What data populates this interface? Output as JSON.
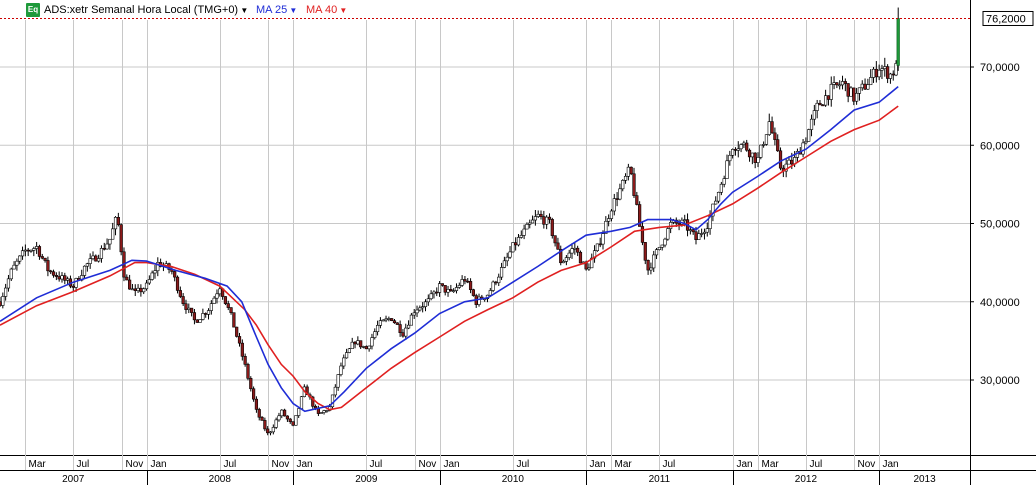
{
  "header": {
    "badge": "Eq",
    "instrument": "ADS:xetr Semanal Hora Local (TMG+0)",
    "ma_short_label": "MA 25",
    "ma_long_label": "MA 40"
  },
  "colors": {
    "candle_up": "#ffffff",
    "candle_down": "#8b1a1a",
    "ma_short": "#1f2dd6",
    "ma_long": "#e02020",
    "last_price_line": "#cc0000",
    "grid": "#c8c8c8",
    "breakout_candle": "#1e9a3a"
  },
  "chart_data": {
    "type": "candlestick",
    "title": "ADS:xetr Semanal Hora Local (TMG+0)",
    "y_axis": {
      "min": 20,
      "max": 80,
      "ticks": [
        "30,0000",
        "40,0000",
        "50,0000",
        "60,0000",
        "70,0000"
      ],
      "tick_values": [
        30,
        40,
        50,
        60,
        70
      ],
      "position": "right"
    },
    "last_price": {
      "value": 76.2,
      "label": "76,2000"
    },
    "x_axis": {
      "months": [
        {
          "label": "Mar",
          "t": 2007.17
        },
        {
          "label": "Jul",
          "t": 2007.5
        },
        {
          "label": "Nov",
          "t": 2007.83
        },
        {
          "label": "Jan",
          "t": 2008.0
        },
        {
          "label": "Jul",
          "t": 2008.5
        },
        {
          "label": "Nov",
          "t": 2008.83
        },
        {
          "label": "Jan",
          "t": 2009.0
        },
        {
          "label": "Jul",
          "t": 2009.5
        },
        {
          "label": "Nov",
          "t": 2009.83
        },
        {
          "label": "Jan",
          "t": 2010.0
        },
        {
          "label": "Jul",
          "t": 2010.5
        },
        {
          "label": "Jan",
          "t": 2011.0
        },
        {
          "label": "Mar",
          "t": 2011.17
        },
        {
          "label": "Jul",
          "t": 2011.5
        },
        {
          "label": "Jan",
          "t": 2012.0
        },
        {
          "label": "Mar",
          "t": 2012.17
        },
        {
          "label": "Jul",
          "t": 2012.5
        },
        {
          "label": "Nov",
          "t": 2012.83
        },
        {
          "label": "Jan",
          "t": 2013.0
        }
      ],
      "years": [
        {
          "label": "2007",
          "t": 2007.0
        },
        {
          "label": "2008",
          "t": 2008.0
        },
        {
          "label": "2009",
          "t": 2009.0
        },
        {
          "label": "2010",
          "t": 2010.0
        },
        {
          "label": "2011",
          "t": 2011.0
        },
        {
          "label": "2012",
          "t": 2012.0
        },
        {
          "label": "2013",
          "t": 2013.0
        }
      ],
      "range": [
        2007.0,
        2013.62
      ]
    },
    "price_path": [
      [
        2007.0,
        40
      ],
      [
        2007.08,
        44
      ],
      [
        2007.17,
        46.5
      ],
      [
        2007.25,
        47
      ],
      [
        2007.33,
        44
      ],
      [
        2007.42,
        43
      ],
      [
        2007.5,
        42
      ],
      [
        2007.58,
        44.5
      ],
      [
        2007.67,
        46
      ],
      [
        2007.75,
        48
      ],
      [
        2007.8,
        51
      ],
      [
        2007.85,
        43
      ],
      [
        2007.92,
        41
      ],
      [
        2008.0,
        42
      ],
      [
        2008.08,
        45
      ],
      [
        2008.17,
        44
      ],
      [
        2008.25,
        40
      ],
      [
        2008.33,
        37.5
      ],
      [
        2008.42,
        39
      ],
      [
        2008.5,
        42
      ],
      [
        2008.58,
        38
      ],
      [
        2008.67,
        32
      ],
      [
        2008.75,
        26
      ],
      [
        2008.83,
        23
      ],
      [
        2008.92,
        26
      ],
      [
        2009.0,
        24
      ],
      [
        2009.08,
        29
      ],
      [
        2009.17,
        25.5
      ],
      [
        2009.25,
        26.5
      ],
      [
        2009.33,
        32
      ],
      [
        2009.42,
        35
      ],
      [
        2009.5,
        34
      ],
      [
        2009.58,
        37
      ],
      [
        2009.67,
        38
      ],
      [
        2009.75,
        36
      ],
      [
        2009.83,
        39
      ],
      [
        2009.92,
        40
      ],
      [
        2010.0,
        42
      ],
      [
        2010.08,
        41
      ],
      [
        2010.17,
        43
      ],
      [
        2010.25,
        40
      ],
      [
        2010.33,
        41
      ],
      [
        2010.42,
        44
      ],
      [
        2010.5,
        47
      ],
      [
        2010.58,
        49
      ],
      [
        2010.67,
        51
      ],
      [
        2010.75,
        50
      ],
      [
        2010.83,
        45
      ],
      [
        2010.92,
        47
      ],
      [
        2011.0,
        44
      ],
      [
        2011.08,
        47
      ],
      [
        2011.17,
        52
      ],
      [
        2011.25,
        55
      ],
      [
        2011.3,
        57
      ],
      [
        2011.38,
        48
      ],
      [
        2011.42,
        44
      ],
      [
        2011.5,
        47
      ],
      [
        2011.58,
        50
      ],
      [
        2011.67,
        50
      ],
      [
        2011.75,
        48
      ],
      [
        2011.83,
        50
      ],
      [
        2011.92,
        55
      ],
      [
        2012.0,
        60
      ],
      [
        2012.08,
        60
      ],
      [
        2012.17,
        58
      ],
      [
        2012.25,
        63
      ],
      [
        2012.33,
        57
      ],
      [
        2012.42,
        58
      ],
      [
        2012.5,
        61
      ],
      [
        2012.58,
        65
      ],
      [
        2012.67,
        67
      ],
      [
        2012.75,
        68
      ],
      [
        2012.83,
        66
      ],
      [
        2012.92,
        68
      ],
      [
        2013.0,
        70
      ],
      [
        2013.08,
        69
      ],
      [
        2013.12,
        70
      ],
      [
        2013.13,
        76
      ]
    ],
    "ma25_path": [
      [
        2007.0,
        37.5
      ],
      [
        2007.25,
        40.5
      ],
      [
        2007.5,
        42.5
      ],
      [
        2007.75,
        44
      ],
      [
        2007.9,
        45.3
      ],
      [
        2008.0,
        45.2
      ],
      [
        2008.2,
        44
      ],
      [
        2008.4,
        43
      ],
      [
        2008.55,
        42
      ],
      [
        2008.65,
        40
      ],
      [
        2008.75,
        35.5
      ],
      [
        2008.83,
        32
      ],
      [
        2008.92,
        29
      ],
      [
        2009.0,
        27
      ],
      [
        2009.08,
        26
      ],
      [
        2009.25,
        26.7
      ],
      [
        2009.35,
        28.5
      ],
      [
        2009.5,
        31.5
      ],
      [
        2009.67,
        34
      ],
      [
        2009.83,
        36
      ],
      [
        2010.0,
        38.5
      ],
      [
        2010.17,
        40
      ],
      [
        2010.33,
        40.5
      ],
      [
        2010.5,
        42.5
      ],
      [
        2010.67,
        44.5
      ],
      [
        2010.83,
        46.5
      ],
      [
        2011.0,
        48.5
      ],
      [
        2011.17,
        49
      ],
      [
        2011.3,
        49.5
      ],
      [
        2011.42,
        50.5
      ],
      [
        2011.58,
        50.5
      ],
      [
        2011.67,
        50
      ],
      [
        2011.75,
        49.2
      ],
      [
        2011.83,
        50.5
      ],
      [
        2011.92,
        52.5
      ],
      [
        2012.0,
        54
      ],
      [
        2012.17,
        56
      ],
      [
        2012.33,
        58
      ],
      [
        2012.5,
        59.5
      ],
      [
        2012.67,
        62
      ],
      [
        2012.83,
        64.5
      ],
      [
        2013.0,
        65.5
      ],
      [
        2013.13,
        67.5
      ]
    ],
    "ma40_path": [
      [
        2007.0,
        37
      ],
      [
        2007.25,
        39.5
      ],
      [
        2007.5,
        41.3
      ],
      [
        2007.75,
        43.3
      ],
      [
        2007.92,
        45
      ],
      [
        2008.0,
        45
      ],
      [
        2008.17,
        44.5
      ],
      [
        2008.33,
        43.5
      ],
      [
        2008.5,
        42
      ],
      [
        2008.67,
        39
      ],
      [
        2008.75,
        37
      ],
      [
        2008.83,
        34.5
      ],
      [
        2008.92,
        32
      ],
      [
        2009.0,
        30.5
      ],
      [
        2009.08,
        28.5
      ],
      [
        2009.17,
        27
      ],
      [
        2009.25,
        26.2
      ],
      [
        2009.33,
        26.5
      ],
      [
        2009.5,
        29
      ],
      [
        2009.67,
        31.5
      ],
      [
        2009.83,
        33.5
      ],
      [
        2010.0,
        35.5
      ],
      [
        2010.17,
        37.5
      ],
      [
        2010.33,
        39
      ],
      [
        2010.5,
        40.5
      ],
      [
        2010.67,
        42.5
      ],
      [
        2010.83,
        44
      ],
      [
        2011.0,
        45
      ],
      [
        2011.17,
        47
      ],
      [
        2011.33,
        49
      ],
      [
        2011.5,
        49.5
      ],
      [
        2011.67,
        49.8
      ],
      [
        2011.83,
        51
      ],
      [
        2012.0,
        52.5
      ],
      [
        2012.17,
        54.5
      ],
      [
        2012.33,
        56.5
      ],
      [
        2012.5,
        58.5
      ],
      [
        2012.67,
        60.5
      ],
      [
        2012.83,
        62
      ],
      [
        2013.0,
        63.2
      ],
      [
        2013.13,
        65
      ]
    ],
    "legend": "top-left",
    "grid": true
  }
}
